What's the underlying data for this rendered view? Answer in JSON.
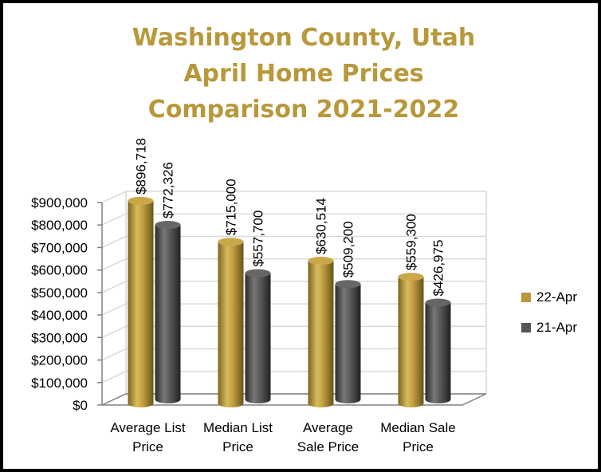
{
  "chart_data": {
    "type": "bar",
    "title_lines": [
      "Washington County, Utah",
      "April Home Prices",
      "Comparison 2021-2022"
    ],
    "categories": [
      [
        "Average List",
        "Price"
      ],
      [
        "Median List",
        "Price"
      ],
      [
        "Average",
        "Sale Price"
      ],
      [
        "Median Sale",
        "Price"
      ]
    ],
    "series": [
      {
        "name": "22-Apr",
        "values": [
          896718,
          715000,
          630514,
          559300
        ],
        "labels": [
          "$896,718",
          "$715,000",
          "$630,514",
          "$559,300"
        ]
      },
      {
        "name": "21-Apr",
        "values": [
          772326,
          557700,
          509200,
          426975
        ],
        "labels": [
          "$772,326",
          "$557,700",
          "$509,200",
          "$426,975"
        ]
      }
    ],
    "y_ticks": [
      "$0",
      "$100,000",
      "$200,000",
      "$300,000",
      "$400,000",
      "$500,000",
      "$600,000",
      "$700,000",
      "$800,000",
      "$900,000"
    ],
    "ylim": [
      0,
      900000
    ],
    "grid": true,
    "legend_position": "right",
    "colors": {
      "title": "#b8983a",
      "22-Apr": "#b8983a",
      "21-Apr": "#555555",
      "grid": "#d9d9d9"
    }
  }
}
